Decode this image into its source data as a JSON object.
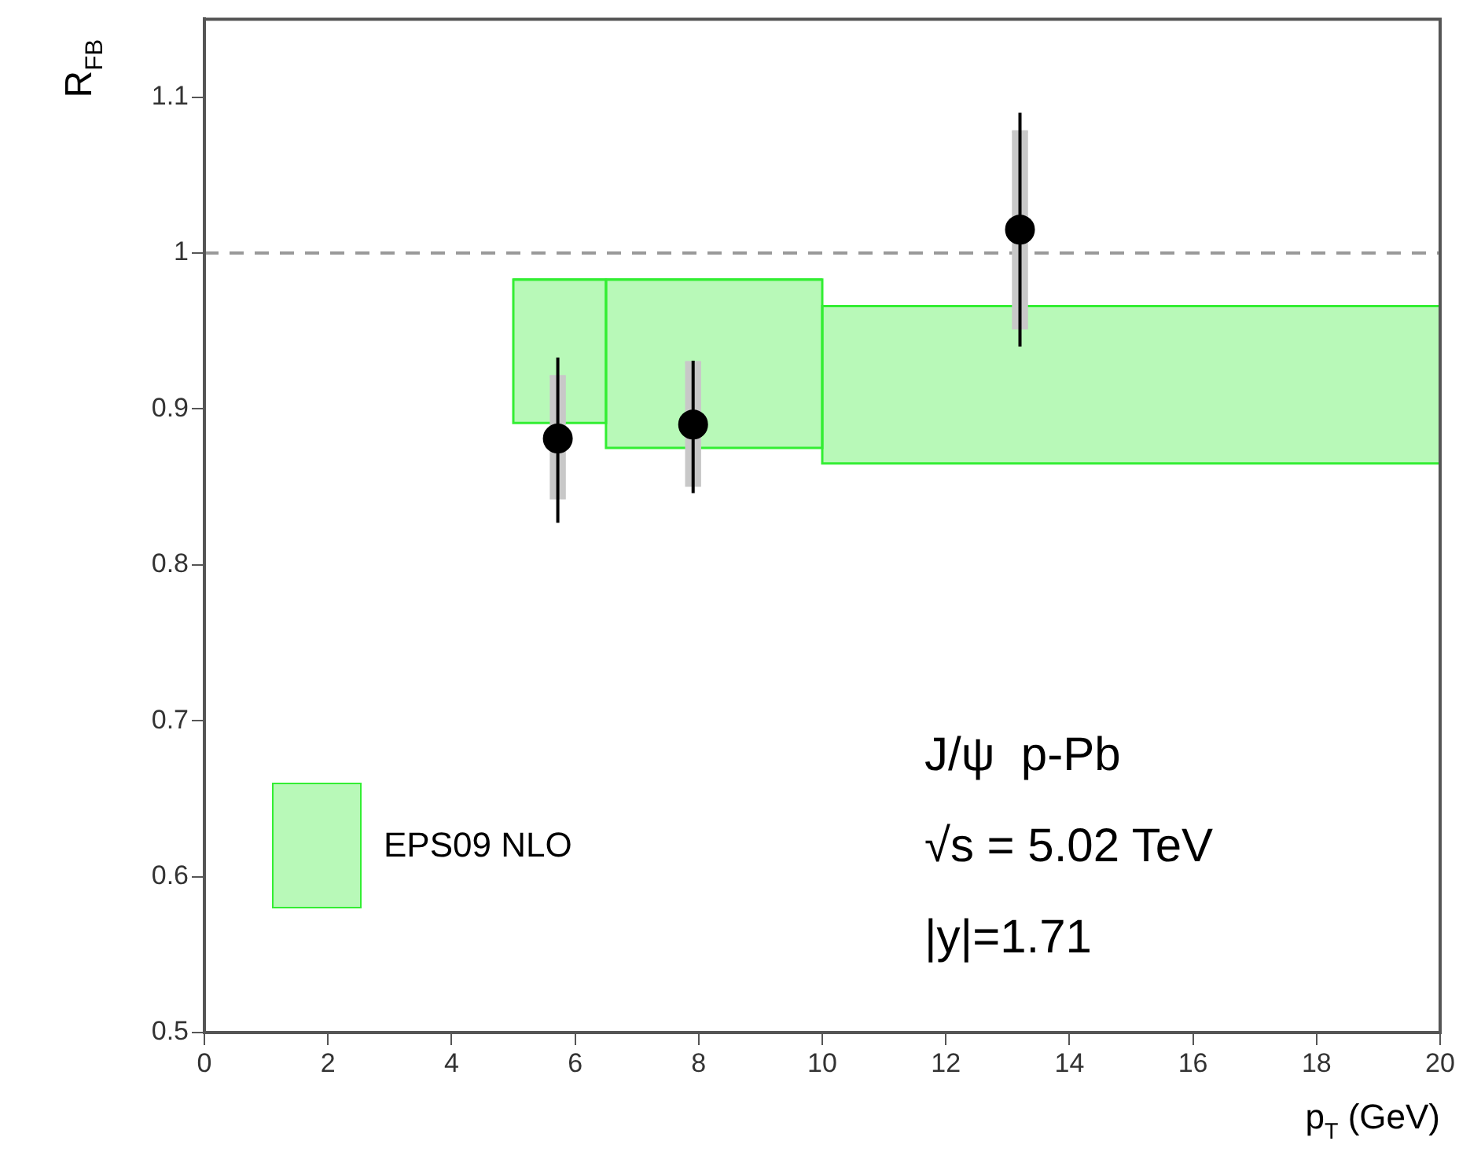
{
  "chart_data": {
    "type": "scatter",
    "xlabel": "p$_{T}$ (GeV)",
    "ylabel": "R$_{FB}$",
    "xlim": [
      0,
      20
    ],
    "xticks": [
      0,
      2,
      4,
      6,
      8,
      10,
      12,
      14,
      16,
      18,
      20
    ],
    "ylim": [
      0.5,
      1.15
    ],
    "yticks": [
      0.5,
      0.6,
      0.7,
      0.8,
      0.9,
      1,
      1.1
    ],
    "grid": false,
    "legend": "bottom left",
    "marker": "circle",
    "series": [
      {
        "name": "EPS09 NLO",
        "type": "bar",
        "color": "#33ee33",
        "x": [
          5.75,
          8.25,
          15
        ],
        "base": [
          0.891,
          0.875,
          0.865
        ],
        "values": [
          0.092,
          0.108,
          0.101
        ],
        "xerrors": [
          [
            5,
            6.5
          ],
          [
            6.5,
            10
          ],
          [
            10,
            20
          ]
        ]
      },
      {
        "type": "bar",
        "color": "#c8c8c8",
        "x": [
          5.72,
          7.91,
          13.2
        ],
        "base": [
          0.842,
          0.85,
          0.951
        ],
        "values": [
          0.079,
          0.08,
          0.127
        ],
        "xerrors": [
          [
            5.59,
            5.85
          ],
          [
            7.78,
            8.04
          ],
          [
            13.07,
            13.33
          ]
        ]
      },
      {
        "type": "scatter",
        "color": "#000000",
        "x": [
          5.72,
          7.91,
          13.2
        ],
        "values": [
          0.881,
          0.89,
          1.015
        ],
        "errors": [
          [
            0.827,
            0.933
          ],
          [
            0.846,
            0.931
          ],
          [
            0.94,
            1.09
          ]
        ]
      }
    ],
    "ref_lines": [
      {
        "axis": "y",
        "value": 1,
        "color": "#999999",
        "line_style": "dashed"
      }
    ],
    "annotations": [
      "J/ψ  p-Pb",
      "√s = 5.02 TeV",
      "|y|=1.71"
    ]
  }
}
